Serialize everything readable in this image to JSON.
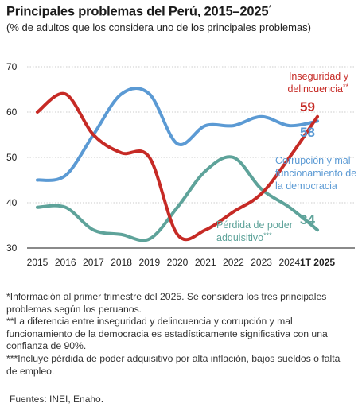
{
  "header": {
    "title": "Principales problemas del Perú, 2015–2025",
    "title_mark": "*",
    "subtitle": "(% de adultos que los considera uno de los principales problemas)"
  },
  "chart_data": {
    "type": "line",
    "x": [
      "2015",
      "2016",
      "2017",
      "2018",
      "2019",
      "2020",
      "2021",
      "2022",
      "2023",
      "2024",
      "1T 2025"
    ],
    "ylim": [
      30,
      70
    ],
    "yticks": [
      30,
      40,
      50,
      60,
      70
    ],
    "grid": true,
    "series": [
      {
        "name": "Inseguridad y delincuencia",
        "name_mark": "**",
        "label_lines": [
          "Inseguridad y",
          "delincuencia"
        ],
        "color": "#c62a25",
        "end_label": "59",
        "values": [
          60,
          64,
          55,
          51,
          50,
          33,
          34,
          38,
          42,
          50,
          59
        ]
      },
      {
        "name": "Corrupción y mal funcionamiento de la democracia",
        "label_lines": [
          "Corrupción y mal",
          "funcionamiento de",
          "la democracia"
        ],
        "color": "#5b9ad4",
        "end_label": "58",
        "values": [
          45,
          46,
          55,
          64,
          64,
          53,
          57,
          57,
          59,
          57,
          58
        ]
      },
      {
        "name": "Pérdida de poder adquisitivo",
        "name_mark": "***",
        "label_lines": [
          "Pérdida de poder",
          "adquisitivo"
        ],
        "color": "#5ea39a",
        "end_label": "34",
        "values": [
          39,
          39,
          34,
          33,
          32,
          39,
          47,
          50,
          43,
          39,
          34
        ]
      }
    ]
  },
  "notes": [
    "*Información al primer trimestre del 2025. Se considera los tres principales problemas según los peruanos.",
    "**La diferencia entre inseguridad y delincuencia y corrupción y mal funcionamiento de la democracia es estadísticamente significativa con una confianza de 90%.",
    "***Incluye pérdida de poder adquisitivo por alta inflación, bajos sueldos o falta de empleo."
  ],
  "source": "Fuentes: INEI, Enaho."
}
